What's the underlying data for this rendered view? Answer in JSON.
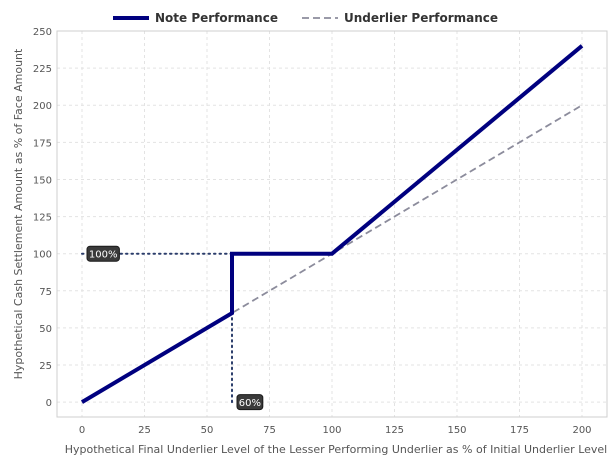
{
  "chart_data": {
    "type": "line",
    "xlabel": "Hypothetical Final Underlier Level of the Lesser Performing Underlier as % of Initial Underlier Level",
    "ylabel": "Hypothetical Cash Settlement Amount as % of Face Amount",
    "xlim": [
      -10,
      210
    ],
    "ylim": [
      -10,
      250
    ],
    "xticks": [
      0,
      25,
      50,
      75,
      100,
      125,
      150,
      175,
      200
    ],
    "yticks": [
      0,
      25,
      50,
      75,
      100,
      125,
      150,
      175,
      200,
      225,
      250
    ],
    "grid": true,
    "legend_position": "top-center",
    "series": [
      {
        "name": "Note Performance",
        "color": "#00007f",
        "style": "solid",
        "x": [
          0,
          60,
          60,
          100,
          200
        ],
        "y": [
          0,
          60,
          100,
          100,
          240
        ]
      },
      {
        "name": "Underlier Performance",
        "color": "#8c8c9c",
        "style": "dashed",
        "x": [
          0,
          200
        ],
        "y": [
          0,
          200
        ]
      }
    ],
    "annotations": [
      {
        "label": "100%",
        "x": 0,
        "y": 100,
        "guide": "horizontal",
        "guide_to_x": 60,
        "color": "#2b3d6b"
      },
      {
        "label": "60%",
        "x": 60,
        "y": 0,
        "guide": "vertical",
        "guide_to_y": 60,
        "color": "#2b3d6b"
      }
    ]
  }
}
